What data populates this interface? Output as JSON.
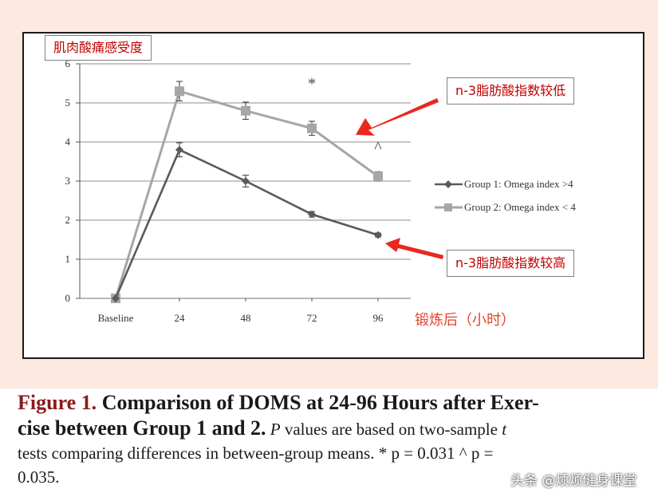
{
  "chart_data": {
    "type": "line",
    "title": "肌肉酸痛感受度",
    "x_unit_label": "锻炼后（小时）",
    "categories": [
      "Baseline",
      "24",
      "48",
      "72",
      "96"
    ],
    "ylim": [
      0,
      6
    ],
    "yticks": [
      "0",
      "1",
      "2",
      "3",
      "4",
      "5",
      "6"
    ],
    "grid": true,
    "legend_position": "right",
    "series": [
      {
        "name": "Group 1: Omega index >4",
        "values": [
          0,
          3.8,
          3.0,
          2.15,
          1.62
        ],
        "errors": [
          0,
          0.18,
          0.15,
          0.07,
          0.05
        ],
        "color": "#5a5a5a",
        "marker": "diamond"
      },
      {
        "name": "Group 2: Omega index < 4",
        "values": [
          0,
          5.3,
          4.8,
          4.35,
          3.12
        ],
        "errors": [
          0,
          0.25,
          0.22,
          0.18,
          0.12
        ],
        "color": "#a6a6a6",
        "marker": "square"
      }
    ],
    "annotations": [
      {
        "text": "*",
        "category": "72"
      },
      {
        "text": "^",
        "category": "96"
      }
    ]
  },
  "callouts": {
    "low": "n-3脂肪酸指数较低",
    "high": "n-3脂肪酸指数较高"
  },
  "colors": {
    "callout_text": "#c00000",
    "arrow": "#e8281e",
    "background": "#fde9df",
    "grid": "#8c8c8c"
  },
  "caption": {
    "figure_label": "Figure 1.",
    "bold_title_1": "Comparison of DOMS at 24-96 Hours after Exer-",
    "bold_title_2": "cise between Group 1 and 2.",
    "p_italic": "P",
    "text_after_p": " values are based on two-sample ",
    "t_italic": "t",
    "line3": "tests comparing differences in between-group means. * p = 0.031   ^ p =",
    "line4": "0.035."
  },
  "watermark": "头条 @烦烦健身课堂"
}
